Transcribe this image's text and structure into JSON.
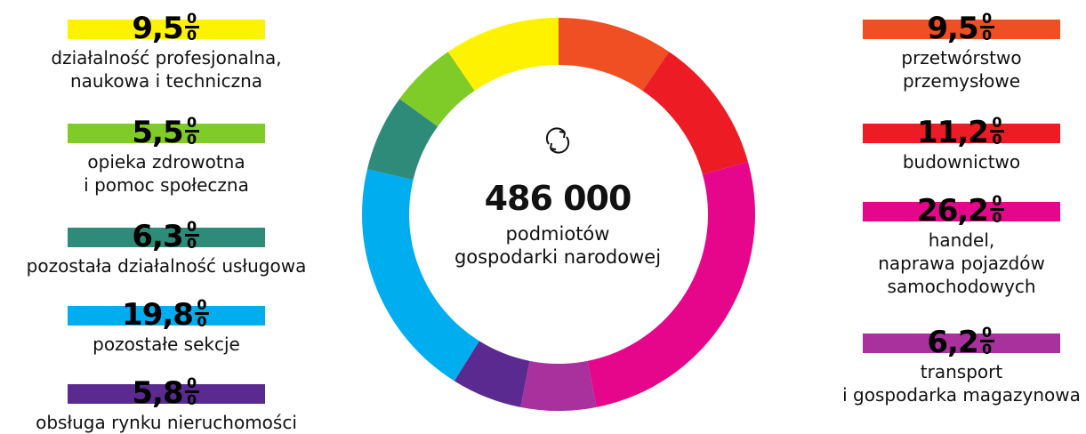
{
  "chart_data": {
    "type": "pie",
    "style": "donut",
    "center": {
      "total": "486 000",
      "label_lines": [
        "podmiotów",
        "gospodarki narodowej"
      ],
      "icon": "refresh-arrows-icon"
    },
    "slices": [
      {
        "value": "9,5",
        "color": "#F04E23",
        "label_lines": [
          "przetwórstwo",
          "przemysłowe"
        ]
      },
      {
        "value": "11,2",
        "color": "#ED1C24",
        "label_lines": [
          "budownictwo"
        ]
      },
      {
        "value": "26,2",
        "color": "#E5068B",
        "label_lines": [
          "handel,",
          "naprawa pojazdów",
          "samochodowych"
        ]
      },
      {
        "value": "6,2",
        "color": "#A8319E",
        "label_lines": [
          "transport",
          "i gospodarka magazynowa"
        ]
      },
      {
        "value": "5,8",
        "color": "#5B2A91",
        "label_lines": [
          "obsługa rynku nieruchomości"
        ]
      },
      {
        "value": "19,8",
        "color": "#00AEEF",
        "label_lines": [
          "pozostałe sekcje"
        ]
      },
      {
        "value": "6,3",
        "color": "#2E8B7A",
        "label_lines": [
          "pozostała działalność usługowa"
        ]
      },
      {
        "value": "5,5",
        "color": "#7FCB27",
        "label_lines": [
          "opieka zdrowotna",
          "i pomoc społeczna"
        ]
      },
      {
        "value": "9,5",
        "color": "#FFF200",
        "label_lines": [
          "działalność profesjonalna,",
          "naukowa i techniczna"
        ]
      }
    ]
  }
}
